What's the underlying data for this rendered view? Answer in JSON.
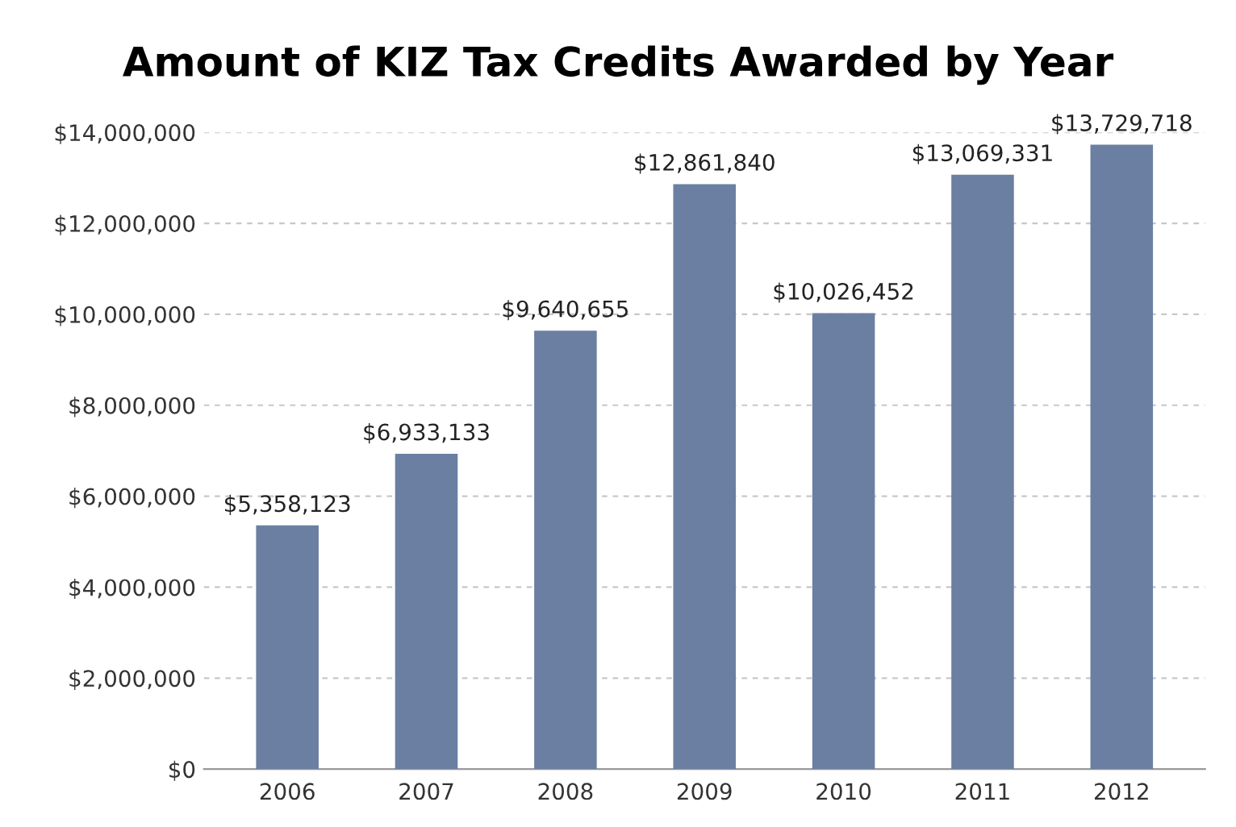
{
  "chart_data": {
    "type": "bar",
    "title": "Amount of KIZ Tax Credits Awarded by Year",
    "categories": [
      "2006",
      "2007",
      "2008",
      "2009",
      "2010",
      "2011",
      "2012"
    ],
    "values": [
      5358123,
      6933133,
      9640655,
      12861840,
      10026452,
      13069331,
      13729718
    ],
    "value_labels": [
      "$5,358,123",
      "$6,933,133",
      "$9,640,655",
      "$12,861,840",
      "$10,026,452",
      "$13,069,331",
      "$13,729,718"
    ],
    "color": "#6b7fa3",
    "ylim": [
      0,
      14000000
    ],
    "yticks": [
      {
        "value": 0,
        "label": "$0"
      },
      {
        "value": 2000000,
        "label": "$2,000,000"
      },
      {
        "value": 4000000,
        "label": "$4,000,000"
      },
      {
        "value": 6000000,
        "label": "$6,000,000"
      },
      {
        "value": 8000000,
        "label": "$8,000,000"
      },
      {
        "value": 10000000,
        "label": "$10,000,000"
      },
      {
        "value": 12000000,
        "label": "$12,000,000"
      },
      {
        "value": 14000000,
        "label": "$14,000,000"
      }
    ],
    "grid": "y"
  }
}
